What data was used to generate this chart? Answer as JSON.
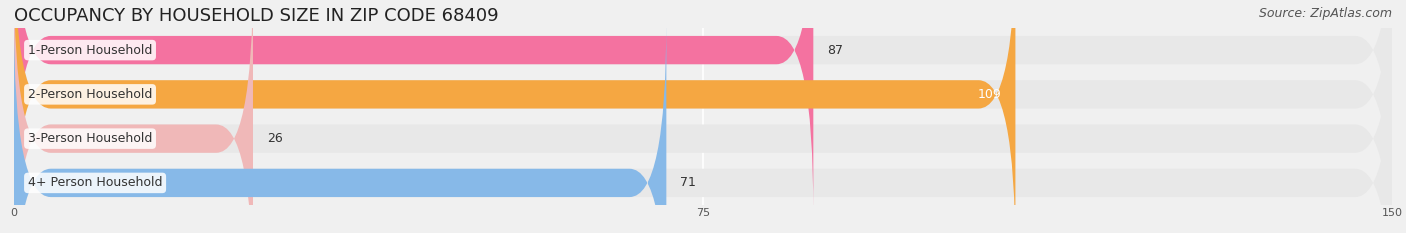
{
  "title": "OCCUPANCY BY HOUSEHOLD SIZE IN ZIP CODE 68409",
  "source": "Source: ZipAtlas.com",
  "categories": [
    "1-Person Household",
    "2-Person Household",
    "3-Person Household",
    "4+ Person Household"
  ],
  "values": [
    87,
    109,
    26,
    71
  ],
  "bar_colors": [
    "#f472a0",
    "#f5a742",
    "#f0b8b8",
    "#87b9e8"
  ],
  "label_colors": [
    "#333333",
    "#ffffff",
    "#333333",
    "#333333"
  ],
  "xlim": [
    0,
    150
  ],
  "xticks": [
    0,
    75,
    150
  ],
  "background_color": "#f0f0f0",
  "bar_bg_color": "#e8e8e8",
  "title_fontsize": 13,
  "source_fontsize": 9,
  "label_fontsize": 9,
  "value_fontsize": 9,
  "bar_height": 0.62,
  "figsize": [
    14.06,
    2.33
  ],
  "dpi": 100
}
